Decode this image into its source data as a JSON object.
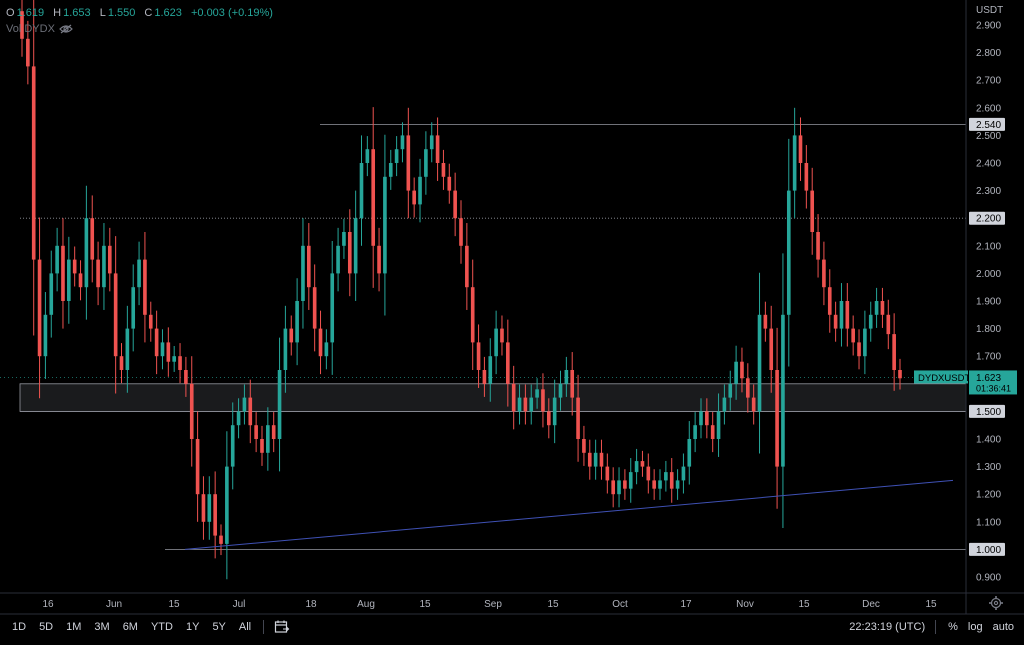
{
  "legend": {
    "open_label": "O",
    "open_value": "1.619",
    "high_label": "H",
    "high_value": "1.653",
    "low_label": "L",
    "low_value": "1.550",
    "close_label": "C",
    "close_value": "1.623",
    "change_value": "+0.003 (+0.19%)",
    "volume_label": "Vol DYDX",
    "visibility_icon": "eye-off-icon"
  },
  "price_axis": {
    "currency": "USDT",
    "ticks": [
      "2.900",
      "2.800",
      "2.700",
      "2.600",
      "2.500",
      "2.400",
      "2.300",
      "2.200",
      "2.100",
      "2.000",
      "1.900",
      "1.800",
      "1.700",
      "1.600",
      "1.500",
      "1.400",
      "1.300",
      "1.200",
      "1.100",
      "1.000",
      "0.900"
    ],
    "highlight_labels": [
      "2.540",
      "2.200",
      "1.500",
      "1.000"
    ]
  },
  "time_axis": {
    "ticks": [
      "16",
      "Jun",
      "15",
      "Jul",
      "18",
      "Aug",
      "15",
      "Sep",
      "15",
      "Oct",
      "17",
      "Nov",
      "15",
      "Dec",
      "15"
    ]
  },
  "current_price": {
    "symbol": "DYDXUSDT",
    "price": "1.623",
    "countdown": "01:36:41"
  },
  "toolbar": {
    "timeframes": [
      "1D",
      "5D",
      "1M",
      "3M",
      "6M",
      "YTD",
      "1Y",
      "5Y",
      "All"
    ],
    "compare_icon": "calendar-range-icon",
    "clock": "22:23:19 (UTC)",
    "percent_label": "%",
    "log_label": "log",
    "auto_label": "auto",
    "settings_icon": "gear-icon"
  },
  "chart_data": {
    "type": "candlestick",
    "symbol": "DYDXUSDT",
    "y_unit": "USDT",
    "ylim": [
      0.85,
      2.95
    ],
    "grid": false,
    "horizontal_levels": [
      {
        "price": 2.54,
        "style": "solid"
      },
      {
        "price": 2.2,
        "style": "dotted"
      },
      {
        "price": 1.5,
        "style": "solid"
      },
      {
        "price": 1.0,
        "style": "solid"
      }
    ],
    "support_zone": {
      "from": 1.5,
      "to": 1.6
    },
    "trendline": {
      "start": {
        "date": "Jun 17",
        "price": 1.0
      },
      "end": {
        "date": "Dec 21",
        "price": 1.25
      },
      "color": "#3f51b5"
    },
    "up_color": "#26a69a",
    "down_color": "#ef5350",
    "closes": [
      2.85,
      2.75,
      2.05,
      1.7,
      1.85,
      2.0,
      2.1,
      1.9,
      2.05,
      2.0,
      1.95,
      2.2,
      2.05,
      1.95,
      2.1,
      2.0,
      1.7,
      1.65,
      1.8,
      1.95,
      2.05,
      1.85,
      1.8,
      1.7,
      1.75,
      1.68,
      1.7,
      1.65,
      1.6,
      1.4,
      1.2,
      1.1,
      1.2,
      1.05,
      1.02,
      1.3,
      1.45,
      1.5,
      1.55,
      1.45,
      1.4,
      1.35,
      1.45,
      1.4,
      1.65,
      1.8,
      1.75,
      1.9,
      2.1,
      1.95,
      1.8,
      1.7,
      1.75,
      2.0,
      2.1,
      2.15,
      2.0,
      2.2,
      2.4,
      2.45,
      2.1,
      2.0,
      2.35,
      2.4,
      2.45,
      2.5,
      2.3,
      2.25,
      2.35,
      2.45,
      2.5,
      2.4,
      2.35,
      2.3,
      2.2,
      2.1,
      1.95,
      1.75,
      1.65,
      1.6,
      1.7,
      1.8,
      1.75,
      1.6,
      1.5,
      1.55,
      1.5,
      1.55,
      1.58,
      1.5,
      1.45,
      1.55,
      1.6,
      1.65,
      1.55,
      1.4,
      1.35,
      1.3,
      1.35,
      1.3,
      1.25,
      1.2,
      1.25,
      1.22,
      1.28,
      1.32,
      1.3,
      1.25,
      1.22,
      1.25,
      1.28,
      1.22,
      1.25,
      1.3,
      1.4,
      1.45,
      1.5,
      1.45,
      1.4,
      1.5,
      1.55,
      1.6,
      1.68,
      1.62,
      1.55,
      1.5,
      1.85,
      1.8,
      1.65,
      1.3,
      1.85,
      2.3,
      2.5,
      2.4,
      2.3,
      2.15,
      2.05,
      1.95,
      1.85,
      1.8,
      1.9,
      1.8,
      1.75,
      1.7,
      1.8,
      1.85,
      1.9,
      1.85,
      1.78,
      1.65,
      1.62
    ]
  }
}
